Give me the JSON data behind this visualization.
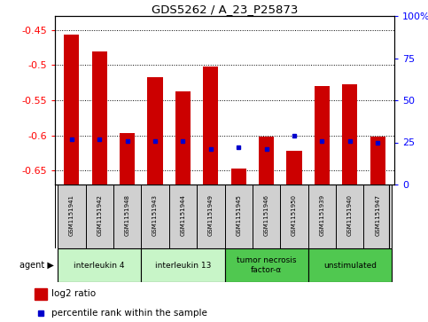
{
  "title": "GDS5262 / A_23_P25873",
  "samples": [
    "GSM1151941",
    "GSM1151942",
    "GSM1151948",
    "GSM1151943",
    "GSM1151944",
    "GSM1151949",
    "GSM1151945",
    "GSM1151946",
    "GSM1151950",
    "GSM1151939",
    "GSM1151940",
    "GSM1151947"
  ],
  "log2_ratio": [
    -0.457,
    -0.48,
    -0.597,
    -0.517,
    -0.537,
    -0.502,
    -0.647,
    -0.602,
    -0.622,
    -0.53,
    -0.527,
    -0.602
  ],
  "percentile_rank": [
    27,
    27,
    26,
    26,
    26,
    21,
    22,
    21,
    29,
    26,
    26,
    25
  ],
  "ylim_left": [
    -0.67,
    -0.43
  ],
  "ylim_right": [
    0,
    100
  ],
  "yticks_left": [
    -0.65,
    -0.6,
    -0.55,
    -0.5,
    -0.45
  ],
  "yticks_right": [
    0,
    25,
    50,
    75,
    100
  ],
  "ytick_labels_right": [
    "0",
    "25",
    "50",
    "75",
    "100%"
  ],
  "bar_color": "#cc0000",
  "dot_color": "#0000cc",
  "bar_width": 0.55,
  "agent_groups": [
    {
      "label": "interleukin 4",
      "color": "#c8f5c8",
      "start": 0,
      "end": 2
    },
    {
      "label": "interleukin 13",
      "color": "#c8f5c8",
      "start": 3,
      "end": 5
    },
    {
      "label": "tumor necrosis\nfactor-α",
      "color": "#50c850",
      "start": 6,
      "end": 8
    },
    {
      "label": "unstimulated",
      "color": "#50c850",
      "start": 9,
      "end": 11
    }
  ],
  "sample_bg": "#d0d0d0",
  "legend_items": [
    "log2 ratio",
    "percentile rank within the sample"
  ]
}
